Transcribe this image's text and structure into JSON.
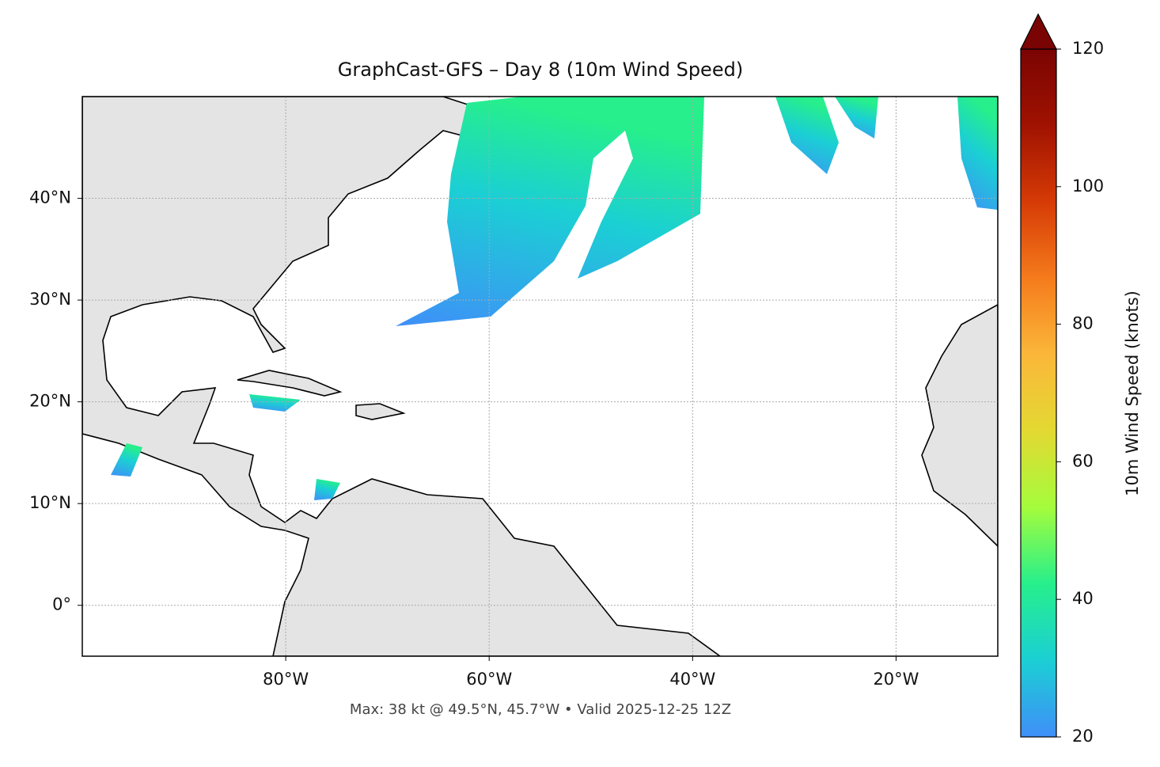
{
  "chart_data": {
    "type": "map",
    "title": "GraphCast-GFS – Day 8 (10m Wind Speed)",
    "annotation": "Max: 38 kt @ 49.5°N, 45.7°W • Valid 2025-12-25 12Z",
    "xlim": [
      -100,
      -10
    ],
    "ylim": [
      -5,
      50
    ],
    "xticks": [
      {
        "value": -80,
        "label": "80°W"
      },
      {
        "value": -60,
        "label": "60°W"
      },
      {
        "value": -40,
        "label": "40°W"
      },
      {
        "value": -20,
        "label": "20°W"
      }
    ],
    "yticks": [
      {
        "value": 0,
        "label": "0°"
      },
      {
        "value": 10,
        "label": "10°N"
      },
      {
        "value": 20,
        "label": "20°N"
      },
      {
        "value": 30,
        "label": "30°N"
      },
      {
        "value": 40,
        "label": "40°N"
      }
    ],
    "grid": true,
    "colorbar": {
      "label": "10m Wind Speed (knots)",
      "lim": [
        20,
        120
      ],
      "ticks": [
        20,
        40,
        60,
        80,
        100,
        120
      ],
      "colors": [
        "#3f8ff8",
        "#1bcfd4",
        "#26ef8c",
        "#a4fc3c",
        "#e3d932",
        "#fbb73a",
        "#f57b1c",
        "#d63b06",
        "#a01201",
        "#7a0403"
      ]
    }
  }
}
